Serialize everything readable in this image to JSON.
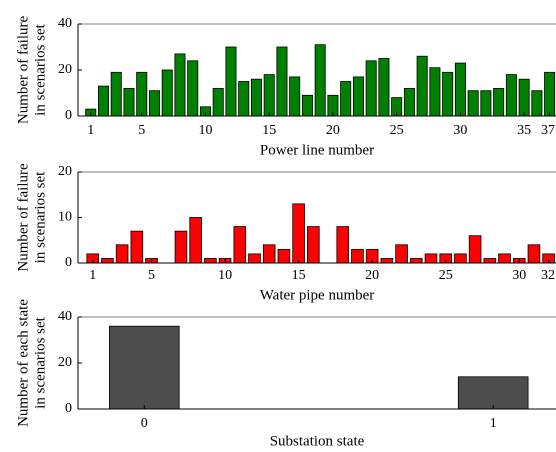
{
  "chart_data": [
    {
      "type": "bar",
      "xlabel": "Power line number",
      "ylabel": [
        "Number of failure",
        "in scenarios set"
      ],
      "color": "#008000",
      "x": [
        1,
        2,
        3,
        4,
        5,
        6,
        7,
        8,
        9,
        10,
        11,
        12,
        13,
        14,
        15,
        16,
        17,
        18,
        19,
        20,
        21,
        22,
        23,
        24,
        25,
        26,
        27,
        28,
        29,
        30,
        31,
        32,
        33,
        34,
        35,
        36,
        37
      ],
      "values": [
        3,
        13,
        19,
        12,
        19,
        11,
        20,
        27,
        24,
        4,
        12,
        30,
        15,
        16,
        18,
        30,
        17,
        9,
        31,
        9,
        15,
        17,
        24,
        25,
        8,
        12,
        26,
        21,
        19,
        23,
        11,
        11,
        12,
        18,
        16,
        11,
        19
      ],
      "xlim": [
        0,
        37.5
      ],
      "xticks": [
        1,
        5,
        10,
        15,
        20,
        25,
        30,
        35,
        37
      ],
      "ylim": [
        0,
        40
      ],
      "yticks": [
        0,
        20,
        40
      ]
    },
    {
      "type": "bar",
      "xlabel": "Water pipe number",
      "ylabel": [
        "Number of failure",
        "in scenarios set"
      ],
      "color": "#ff0000",
      "x": [
        1,
        2,
        3,
        4,
        5,
        6,
        7,
        8,
        9,
        10,
        11,
        12,
        13,
        14,
        15,
        16,
        17,
        18,
        19,
        20,
        21,
        22,
        23,
        24,
        25,
        26,
        27,
        28,
        29,
        30,
        31,
        32
      ],
      "values": [
        2,
        1,
        4,
        7,
        1,
        0,
        7,
        10,
        1,
        1,
        8,
        2,
        4,
        3,
        13,
        8,
        0,
        8,
        3,
        3,
        1,
        4,
        1,
        2,
        2,
        2,
        6,
        1,
        2,
        1,
        4,
        2
      ],
      "xlim": [
        0,
        32.5
      ],
      "xticks": [
        1,
        5,
        10,
        15,
        20,
        25,
        30,
        32
      ],
      "ylim": [
        0,
        20
      ],
      "yticks": [
        0,
        10,
        20
      ]
    },
    {
      "type": "bar",
      "xlabel": "Substation state",
      "ylabel": [
        "Number of each state",
        "in scenarios set"
      ],
      "color": "#4d4d4d",
      "x": [
        0,
        1
      ],
      "values": [
        36,
        14
      ],
      "xlim": [
        -0.19,
        1.18
      ],
      "xticks": [
        0,
        1
      ],
      "ylim": [
        0,
        40
      ],
      "yticks": [
        0,
        20,
        40
      ]
    }
  ]
}
